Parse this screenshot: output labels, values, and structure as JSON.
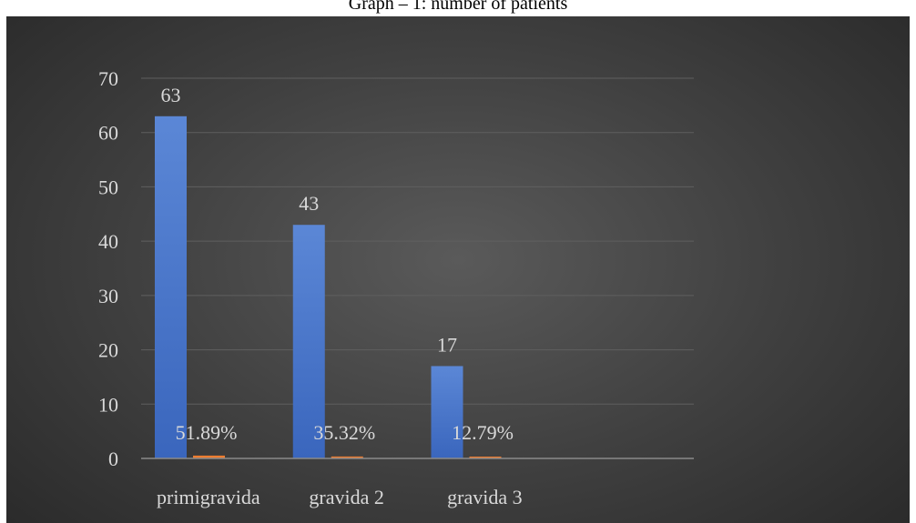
{
  "chart_data": {
    "type": "bar",
    "title": "Graph – 1: number of patients",
    "categories": [
      "primigravida",
      "gravida 2",
      "gravida 3"
    ],
    "series": [
      {
        "values": [
          63,
          43,
          17
        ],
        "labels": [
          "63",
          "43",
          "17"
        ],
        "color": "#4472c4"
      },
      {
        "values": [
          0.5189,
          0.3532,
          0.1279
        ],
        "labels": [
          "51.89%",
          "35.32%",
          "12.79%"
        ],
        "color": "#ed7d31"
      }
    ],
    "ylim": [
      0,
      70
    ],
    "yticks": [
      0,
      10,
      20,
      30,
      40,
      50,
      60,
      70
    ],
    "grid": true,
    "legend": "none",
    "xlabel": "",
    "ylabel": ""
  }
}
